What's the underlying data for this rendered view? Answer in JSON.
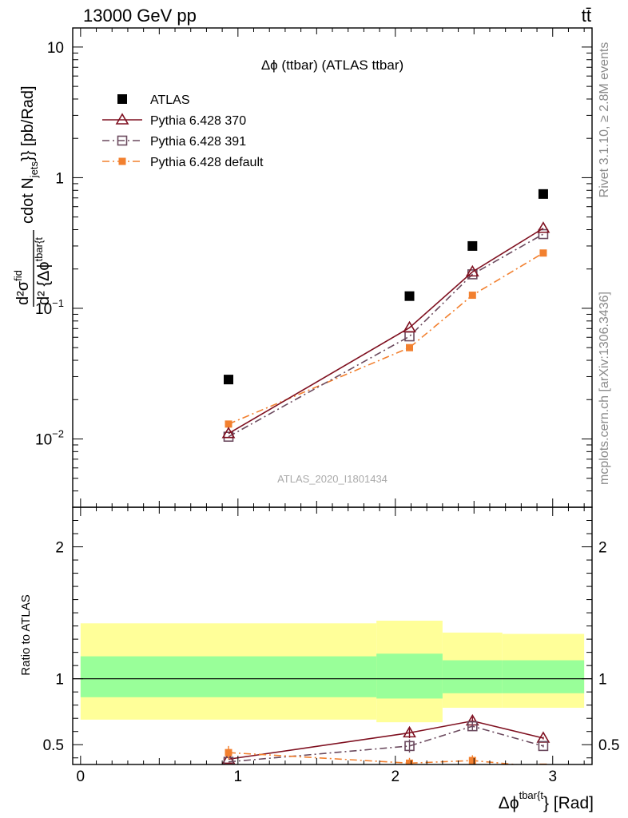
{
  "header": {
    "energy_label": "13000 GeV pp",
    "process_label": "tt̄"
  },
  "side_labels": {
    "rivet": "Rivet 3.1.10, ≥ 2.8M events",
    "mcplots": "mcplots.cern.ch [arXiv:1306.3436]"
  },
  "chart_data": [
    {
      "type": "scatter",
      "title": "Δϕ (ttbar) (ATLAS ttbar)",
      "ylabel_num": "d²σ",
      "ylabel_num_sup": "fid",
      "ylabel_den": "d² {Δϕ",
      "ylabel_den_sup": "tbar{t",
      "ylabel_rest": "cdot N",
      "ylabel_rest_sub": "jets",
      "ylabel_units": "}} [pb/Rad]",
      "yscale": "log",
      "xlim": [
        -0.05,
        3.25
      ],
      "ylim": [
        0.003,
        14
      ],
      "yticks": [
        {
          "value": 10,
          "label": "10"
        },
        {
          "value": 1,
          "label": "1"
        },
        {
          "value": 0.1,
          "label": "10",
          "sup": "−1"
        },
        {
          "value": 0.01,
          "label": "10",
          "sup": "−2"
        }
      ],
      "watermark": "ATLAS_2020_I1801434",
      "legend_position": "top-left",
      "series": [
        {
          "name": "ATLAS",
          "marker": "square-filled",
          "color": "#000000",
          "x": [
            0.94,
            2.09,
            2.49,
            2.94
          ],
          "y": [
            0.0285,
            0.124,
            0.3,
            0.75
          ]
        },
        {
          "name": "Pythia 6.428 370",
          "marker": "triangle-open",
          "color": "#7f1020",
          "line": "solid",
          "x": [
            0.94,
            2.09,
            2.49,
            2.94
          ],
          "y": [
            0.011,
            0.071,
            0.19,
            0.41
          ]
        },
        {
          "name": "Pythia 6.428 391",
          "marker": "square-open",
          "color": "#6b4a5e",
          "line": "dashdot",
          "x": [
            0.94,
            2.09,
            2.49,
            2.94
          ],
          "y": [
            0.0104,
            0.061,
            0.182,
            0.37
          ]
        },
        {
          "name": "Pythia 6.428 default",
          "marker": "square-filled-small",
          "color": "#f2802f",
          "line": "dashdot",
          "x": [
            0.94,
            2.09,
            2.49,
            2.94
          ],
          "y": [
            0.013,
            0.05,
            0.126,
            0.265
          ]
        }
      ]
    },
    {
      "type": "line",
      "ylabel": "Ratio to ATLAS",
      "xlabel": "Δϕ",
      "xlabel_sup": "tbar{t",
      "xlabel_rest": "} [Rad]",
      "xlim": [
        -0.05,
        3.25
      ],
      "ylim": [
        0.35,
        2.3
      ],
      "xticks": [
        0,
        1,
        2,
        3
      ],
      "yticks": [
        {
          "value": 2,
          "label": "2"
        },
        {
          "value": 1,
          "label": "1"
        },
        {
          "value": 0.5,
          "label": "0.5"
        }
      ],
      "bands": [
        {
          "x0": 0.0,
          "x1": 1.88,
          "outer": [
            0.69,
            1.42
          ],
          "inner": [
            0.86,
            1.17
          ]
        },
        {
          "x0": 1.88,
          "x1": 2.3,
          "outer": [
            0.67,
            1.44
          ],
          "inner": [
            0.85,
            1.19
          ]
        },
        {
          "x0": 2.3,
          "x1": 2.68,
          "outer": [
            0.78,
            1.35
          ],
          "inner": [
            0.89,
            1.14
          ]
        },
        {
          "x0": 2.68,
          "x1": 3.2,
          "outer": [
            0.78,
            1.34
          ],
          "inner": [
            0.89,
            1.14
          ]
        }
      ],
      "series": [
        {
          "name": "Pythia 6.428 370",
          "color": "#7f1020",
          "line": "solid",
          "marker": "triangle-open",
          "x": [
            0.94,
            2.09,
            2.49,
            2.94
          ],
          "y": [
            0.39,
            0.59,
            0.68,
            0.55
          ],
          "err": [
            0,
            0.04,
            0.03,
            0.01
          ]
        },
        {
          "name": "Pythia 6.428 391",
          "color": "#6b4a5e",
          "line": "dashdot",
          "marker": "square-open",
          "x": [
            0.94,
            2.09,
            2.49,
            2.94
          ],
          "y": [
            0.37,
            0.49,
            0.64,
            0.49
          ],
          "err": [
            0,
            0.05,
            0.03,
            0.01
          ]
        },
        {
          "name": "Pythia 6.428 default",
          "color": "#f2802f",
          "line": "dashdot",
          "marker": "square-filled-small",
          "x": [
            0.94,
            2.09,
            2.49,
            2.94
          ],
          "y": [
            0.44,
            0.36,
            0.38,
            0.33
          ],
          "err": [
            0.05,
            0.04,
            0.04,
            0.02
          ]
        }
      ]
    }
  ]
}
